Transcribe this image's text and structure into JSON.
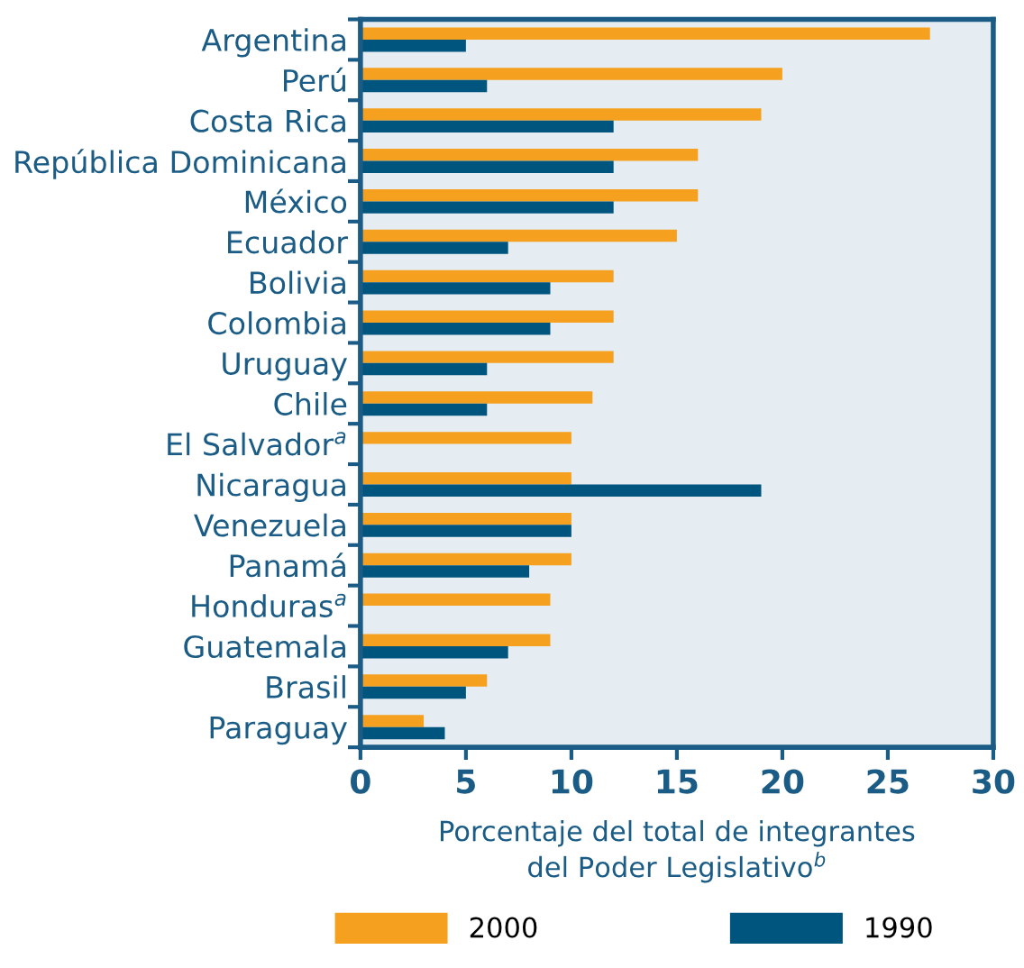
{
  "chart_data": {
    "type": "bar",
    "orientation": "horizontal",
    "xlabel": "Porcentaje del total de integrantes\ndel Poder Legislativo$^{b}$",
    "categories": [
      "Argentina",
      "Perú",
      "Costa Rica",
      "República Dominicana",
      "México",
      "Ecuador",
      "Bolivia",
      "Colombia",
      "Uruguay",
      "Chile",
      "El Salvador$^{a}$",
      "Nicaragua",
      "Venezuela",
      "Panamá",
      "Honduras$^{a}$",
      "Guatemala",
      "Brasil",
      "Paraguay"
    ],
    "series": [
      {
        "name": "2000",
        "color": "#f5a01e",
        "values": [
          27,
          20,
          19,
          16,
          16,
          15,
          12,
          12,
          12,
          11,
          10,
          10,
          10,
          10,
          9,
          9,
          6,
          3
        ]
      },
      {
        "name": "1990",
        "color": "#00557f",
        "values": [
          5,
          6,
          12,
          12,
          12,
          7,
          9,
          9,
          6,
          6,
          null,
          19,
          10,
          8,
          null,
          7,
          5,
          4
        ]
      }
    ],
    "xlim": [
      0,
      30
    ],
    "xticks": [
      0,
      5,
      10,
      15,
      20,
      25,
      30
    ],
    "grid": false,
    "legend": "bottom"
  }
}
